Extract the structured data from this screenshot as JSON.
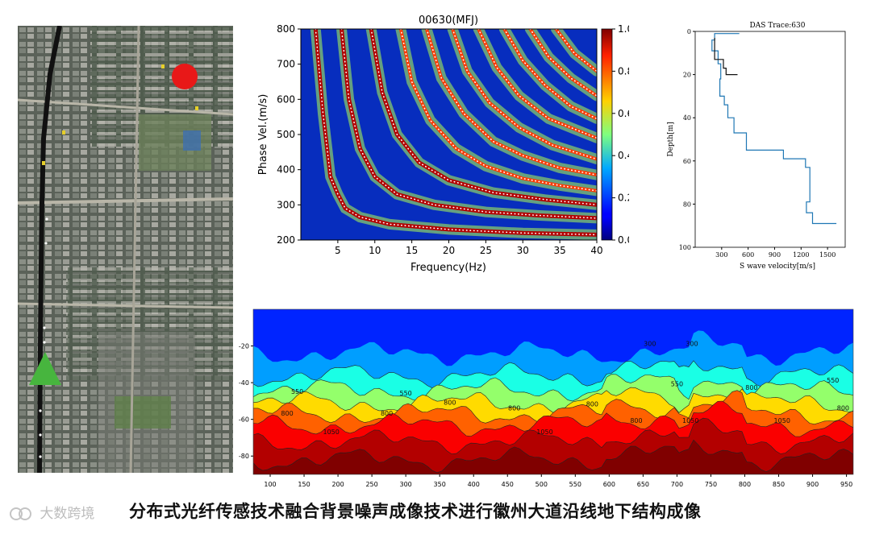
{
  "caption": "分布式光纤传感技术融合背景噪声成像技术进行徽州大道沿线地下结构成像",
  "watermark": "大数跨境",
  "colors": {
    "jet_low": "#00007f",
    "jet_mid": "#7fff7f",
    "jet_high": "#7f0000",
    "route_line": "#111111",
    "source_marker": "#e81818",
    "receiver_marker": "#47b53e",
    "velocity_profile": "#1f77b4"
  },
  "map_panel": {
    "source_marker_icon": "red-circle-icon",
    "receiver_marker_icon": "green-triangle-icon"
  },
  "chart_data": [
    {
      "type": "heatmap",
      "title": "00630(MFJ)",
      "xlabel": "Frequency(Hz)",
      "ylabel": "Phase Vel.(m/s)",
      "xlim": [
        0,
        40
      ],
      "ylim": [
        200,
        800
      ],
      "xticks": [
        "5",
        "10",
        "15",
        "20",
        "25",
        "30",
        "35",
        "40"
      ],
      "yticks": [
        "200",
        "300",
        "400",
        "500",
        "600",
        "700",
        "800"
      ],
      "colorbar": {
        "min": 0.0,
        "max": 1.0,
        "ticks": [
          "0.0",
          "0.2",
          "0.4",
          "0.6",
          "0.8",
          "1.0"
        ],
        "colormap": "jet"
      },
      "dispersion_modes": [
        {
          "name": "mode 0",
          "points": [
            [
              2.0,
              800
            ],
            [
              3.0,
              560
            ],
            [
              4.0,
              380
            ],
            [
              5.0,
              330
            ],
            [
              6.0,
              290
            ],
            [
              8.0,
              265
            ],
            [
              12.0,
              245
            ],
            [
              20.0,
              230
            ],
            [
              30.0,
              220
            ],
            [
              40.0,
              215
            ]
          ]
        },
        {
          "name": "mode 1",
          "points": [
            [
              5.5,
              800
            ],
            [
              6.5,
              600
            ],
            [
              8.0,
              460
            ],
            [
              10.0,
              380
            ],
            [
              13.0,
              330
            ],
            [
              18.0,
              300
            ],
            [
              25.0,
              280
            ],
            [
              32.0,
              270
            ],
            [
              40.0,
              262
            ]
          ]
        },
        {
          "name": "mode 2",
          "points": [
            [
              9.5,
              800
            ],
            [
              11.0,
              620
            ],
            [
              13.0,
              500
            ],
            [
              16.0,
              420
            ],
            [
              20.0,
              370
            ],
            [
              26.0,
              335
            ],
            [
              33.0,
              315
            ],
            [
              40.0,
              300
            ]
          ]
        },
        {
          "name": "mode 3",
          "points": [
            [
              13.5,
              800
            ],
            [
              15.0,
              650
            ],
            [
              17.5,
              540
            ],
            [
              21.0,
              460
            ],
            [
              25.0,
              410
            ],
            [
              30.0,
              375
            ],
            [
              35.0,
              355
            ],
            [
              40.0,
              340
            ]
          ]
        },
        {
          "name": "mode 4",
          "points": [
            [
              17.0,
              800
            ],
            [
              19.0,
              660
            ],
            [
              22.0,
              560
            ],
            [
              26.0,
              480
            ],
            [
              30.0,
              440
            ],
            [
              35.0,
              405
            ],
            [
              40.0,
              385
            ]
          ]
        },
        {
          "name": "mode 5",
          "points": [
            [
              20.5,
              800
            ],
            [
              22.5,
              680
            ],
            [
              25.5,
              590
            ],
            [
              29.5,
              520
            ],
            [
              34.0,
              470
            ],
            [
              40.0,
              430
            ]
          ]
        },
        {
          "name": "mode 6",
          "points": [
            [
              24.0,
              800
            ],
            [
              26.5,
              690
            ],
            [
              29.5,
              610
            ],
            [
              33.5,
              545
            ],
            [
              40.0,
              490
            ]
          ]
        },
        {
          "name": "mode 7",
          "points": [
            [
              27.5,
              800
            ],
            [
              30.0,
              710
            ],
            [
              33.0,
              640
            ],
            [
              36.5,
              580
            ],
            [
              40.0,
              545
            ]
          ]
        },
        {
          "name": "mode 8",
          "points": [
            [
              31.0,
              800
            ],
            [
              33.5,
              720
            ],
            [
              36.5,
              660
            ],
            [
              40.0,
              610
            ]
          ]
        },
        {
          "name": "mode 9",
          "points": [
            [
              34.5,
              800
            ],
            [
              37.0,
              730
            ],
            [
              40.0,
              680
            ]
          ]
        }
      ]
    },
    {
      "type": "line",
      "title": "DAS Trace:630",
      "xlabel": "S wave velocity[m/s]",
      "ylabel": "Depth[m]",
      "xlim": [
        0,
        1700
      ],
      "ylim": [
        100,
        0
      ],
      "xticks": [
        "300",
        "600",
        "900",
        "1200",
        "1500"
      ],
      "yticks": [
        "0",
        "20",
        "40",
        "60",
        "80",
        "100"
      ],
      "series": [
        {
          "color": "#1f77b4",
          "steps": [
            [
              500,
              1
            ],
            [
              220,
              1
            ],
            [
              220,
              4
            ],
            [
              190,
              4
            ],
            [
              190,
              9
            ],
            [
              260,
              9
            ],
            [
              260,
              15
            ],
            [
              290,
              15
            ],
            [
              290,
              22
            ],
            [
              280,
              22
            ],
            [
              280,
              30
            ],
            [
              330,
              30
            ],
            [
              330,
              34
            ],
            [
              370,
              34
            ],
            [
              370,
              40
            ],
            [
              440,
              40
            ],
            [
              440,
              47
            ],
            [
              580,
              47
            ],
            [
              580,
              55
            ],
            [
              1000,
              55
            ],
            [
              1000,
              59
            ],
            [
              1250,
              59
            ],
            [
              1250,
              63
            ],
            [
              1300,
              63
            ],
            [
              1300,
              79
            ],
            [
              1260,
              79
            ],
            [
              1260,
              84
            ],
            [
              1330,
              84
            ],
            [
              1330,
              89
            ],
            [
              1600,
              89
            ]
          ]
        },
        {
          "color": "#111111",
          "steps": [
            [
              220,
              3
            ],
            [
              220,
              13
            ],
            [
              320,
              13
            ],
            [
              320,
              17
            ],
            [
              350,
              17
            ],
            [
              350,
              20
            ],
            [
              480,
              20
            ]
          ]
        }
      ]
    },
    {
      "type": "heatmap",
      "title": "",
      "xlabel": "",
      "ylabel": "",
      "xlim": [
        75,
        960
      ],
      "ylim": [
        -90,
        0
      ],
      "xticks": [
        "100",
        "150",
        "200",
        "250",
        "300",
        "350",
        "400",
        "450",
        "500",
        "550",
        "600",
        "650",
        "700",
        "750",
        "800",
        "850",
        "900",
        "950"
      ],
      "yticks": [
        "-20",
        "-40",
        "-60",
        "-80"
      ],
      "colormap": "jet",
      "value_range": [
        150,
        1300
      ],
      "contour_labels": [
        {
          "x": 140,
          "y": -46,
          "text": "550"
        },
        {
          "x": 125,
          "y": -58,
          "text": "800"
        },
        {
          "x": 190,
          "y": -68,
          "text": "1050"
        },
        {
          "x": 300,
          "y": -47,
          "text": "550"
        },
        {
          "x": 272,
          "y": -58,
          "text": "800"
        },
        {
          "x": 365,
          "y": -52,
          "text": "800"
        },
        {
          "x": 505,
          "y": -68,
          "text": "1050"
        },
        {
          "x": 640,
          "y": -62,
          "text": "800"
        },
        {
          "x": 660,
          "y": -20,
          "text": "300"
        },
        {
          "x": 700,
          "y": -42,
          "text": "550"
        },
        {
          "x": 722,
          "y": -20,
          "text": "300"
        },
        {
          "x": 720,
          "y": -62,
          "text": "1050"
        },
        {
          "x": 810,
          "y": -44,
          "text": "800"
        },
        {
          "x": 855,
          "y": -62,
          "text": "1050"
        },
        {
          "x": 930,
          "y": -40,
          "text": "550"
        },
        {
          "x": 945,
          "y": -55,
          "text": "800"
        },
        {
          "x": 575,
          "y": -53,
          "text": "800"
        },
        {
          "x": 460,
          "y": -55,
          "text": "800"
        }
      ]
    }
  ]
}
